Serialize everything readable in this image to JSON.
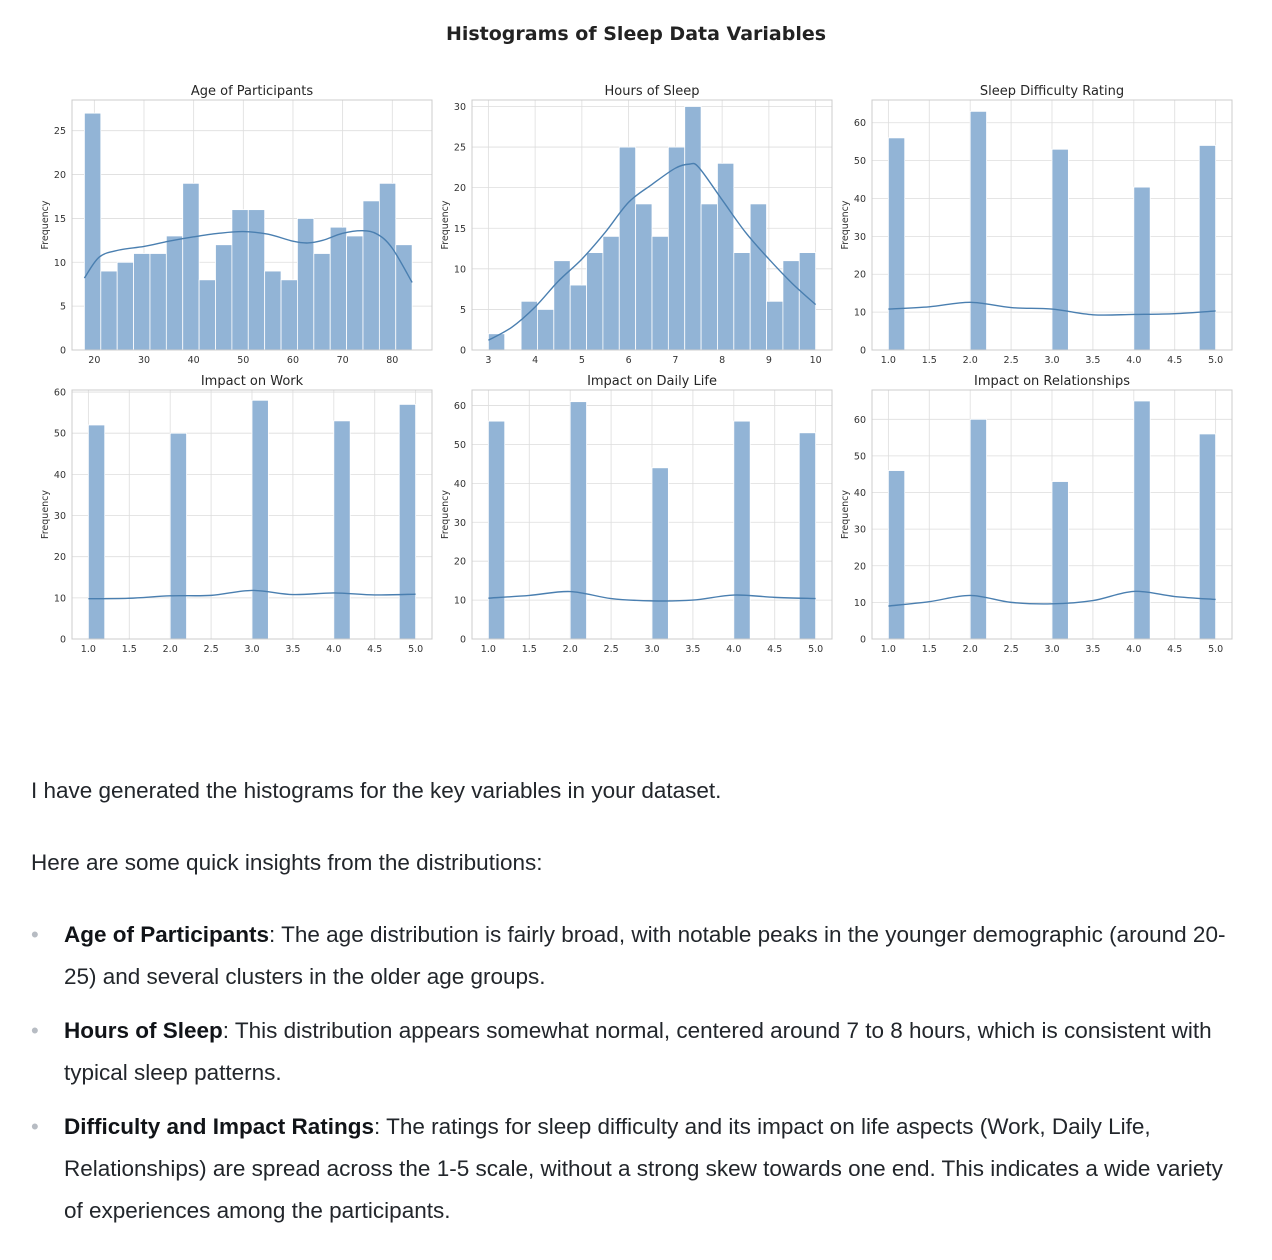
{
  "chart_title": "Histograms of Sleep Data Variables",
  "chart_data": [
    {
      "type": "bar",
      "title": "Age of Participants",
      "ylabel": "Frequency",
      "xlabel": "",
      "x_range": [
        15.5,
        88
      ],
      "ylim": [
        0,
        28.5
      ],
      "xticks": [
        20,
        30,
        40,
        50,
        60,
        70,
        80
      ],
      "xtick_labels": [
        "20",
        "30",
        "40",
        "50",
        "60",
        "70",
        "80"
      ],
      "yticks": [
        0,
        5,
        10,
        15,
        20,
        25
      ],
      "bin_edges": [
        18,
        21.3,
        24.6,
        27.9,
        31.2,
        34.5,
        37.8,
        41.1,
        44.4,
        47.7,
        51,
        54.3,
        57.6,
        60.9,
        64.2,
        67.5,
        70.8,
        74.1,
        77.4,
        80.7,
        84
      ],
      "counts": [
        27,
        9,
        10,
        11,
        11,
        13,
        19,
        8,
        12,
        16,
        16,
        9,
        8,
        15,
        11,
        14,
        13,
        17,
        19,
        12
      ],
      "kde": {
        "x": [
          18,
          21,
          25,
          30,
          35,
          40,
          45,
          50,
          55,
          60,
          63,
          66,
          70,
          74,
          77,
          80,
          84
        ],
        "y": [
          8.2,
          10.6,
          11.4,
          11.8,
          12.4,
          12.9,
          13.3,
          13.5,
          13.2,
          12.4,
          12.2,
          12.5,
          13.3,
          13.6,
          13.2,
          11.6,
          7.7
        ]
      },
      "grid": true
    },
    {
      "type": "bar",
      "title": "Hours of Sleep",
      "ylabel": "Frequency",
      "xlabel": "",
      "x_range": [
        2.65,
        10.35
      ],
      "ylim": [
        0,
        30.8
      ],
      "xticks": [
        3,
        4,
        5,
        6,
        7,
        8,
        9,
        10
      ],
      "xtick_labels": [
        "3",
        "4",
        "5",
        "6",
        "7",
        "8",
        "9",
        "10"
      ],
      "yticks": [
        0,
        5,
        10,
        15,
        20,
        25,
        30
      ],
      "bin_edges": [
        3,
        3.35,
        3.7,
        4.05,
        4.4,
        4.75,
        5.1,
        5.45,
        5.8,
        6.15,
        6.5,
        6.85,
        7.2,
        7.55,
        7.9,
        8.25,
        8.6,
        8.95,
        9.3,
        9.65,
        10
      ],
      "counts": [
        2,
        0,
        6,
        5,
        11,
        8,
        12,
        14,
        25,
        18,
        14,
        25,
        30,
        18,
        23,
        12,
        18,
        6,
        11,
        12
      ],
      "kde": {
        "x": [
          3,
          3.5,
          4,
          4.5,
          5,
          5.5,
          6,
          6.5,
          7,
          7.3,
          7.5,
          8,
          8.5,
          9,
          9.5,
          10
        ],
        "y": [
          1.2,
          2.8,
          5.3,
          8.5,
          11.2,
          14.5,
          18.2,
          20.4,
          22.4,
          22.9,
          22.5,
          18.5,
          14.5,
          11.2,
          8.2,
          5.6
        ]
      },
      "grid": true
    },
    {
      "type": "bar",
      "title": "Sleep Difficulty Rating",
      "ylabel": "Frequency",
      "xlabel": "",
      "x_range": [
        0.8,
        5.2
      ],
      "ylim": [
        0,
        66
      ],
      "xticks": [
        1.0,
        1.5,
        2.0,
        2.5,
        3.0,
        3.5,
        4.0,
        4.5,
        5.0
      ],
      "xtick_labels": [
        "1.0",
        "1.5",
        "2.0",
        "2.5",
        "3.0",
        "3.5",
        "4.0",
        "4.5",
        "5.0"
      ],
      "yticks": [
        0,
        10,
        20,
        30,
        40,
        50,
        60
      ],
      "bin_edges": [
        1,
        1.2,
        1.4,
        1.6,
        1.8,
        2,
        2.2,
        2.4,
        2.6,
        2.8,
        3,
        3.2,
        3.4,
        3.6,
        3.8,
        4,
        4.2,
        4.4,
        4.6,
        4.8,
        5
      ],
      "counts": [
        56,
        0,
        0,
        0,
        0,
        63,
        0,
        0,
        0,
        0,
        53,
        0,
        0,
        0,
        0,
        43,
        0,
        0,
        0,
        54
      ],
      "kde": {
        "x": [
          1,
          1.5,
          2,
          2.5,
          3,
          3.5,
          4,
          4.5,
          5
        ],
        "y": [
          10.8,
          11.4,
          12.6,
          11.2,
          10.8,
          9.3,
          9.4,
          9.6,
          10.3
        ]
      },
      "grid": true
    },
    {
      "type": "bar",
      "title": "Impact on Work",
      "ylabel": "Frequency",
      "xlabel": "",
      "x_range": [
        0.8,
        5.2
      ],
      "ylim": [
        0,
        60.5
      ],
      "xticks": [
        1.0,
        1.5,
        2.0,
        2.5,
        3.0,
        3.5,
        4.0,
        4.5,
        5.0
      ],
      "xtick_labels": [
        "1.0",
        "1.5",
        "2.0",
        "2.5",
        "3.0",
        "3.5",
        "4.0",
        "4.5",
        "5.0"
      ],
      "yticks": [
        0,
        10,
        20,
        30,
        40,
        50,
        60
      ],
      "bin_edges": [
        1,
        1.2,
        1.4,
        1.6,
        1.8,
        2,
        2.2,
        2.4,
        2.6,
        2.8,
        3,
        3.2,
        3.4,
        3.6,
        3.8,
        4,
        4.2,
        4.4,
        4.6,
        4.8,
        5
      ],
      "counts": [
        52,
        0,
        0,
        0,
        0,
        50,
        0,
        0,
        0,
        0,
        58,
        0,
        0,
        0,
        0,
        53,
        0,
        0,
        0,
        57
      ],
      "kde": {
        "x": [
          1,
          1.5,
          2,
          2.5,
          3,
          3.5,
          4,
          4.5,
          5
        ],
        "y": [
          9.8,
          9.9,
          10.5,
          10.6,
          11.8,
          10.8,
          11.2,
          10.7,
          10.9
        ]
      },
      "grid": true
    },
    {
      "type": "bar",
      "title": "Impact on Daily Life",
      "ylabel": "Frequency",
      "xlabel": "",
      "x_range": [
        0.8,
        5.2
      ],
      "ylim": [
        0,
        64
      ],
      "xticks": [
        1.0,
        1.5,
        2.0,
        2.5,
        3.0,
        3.5,
        4.0,
        4.5,
        5.0
      ],
      "xtick_labels": [
        "1.0",
        "1.5",
        "2.0",
        "2.5",
        "3.0",
        "3.5",
        "4.0",
        "4.5",
        "5.0"
      ],
      "yticks": [
        0,
        10,
        20,
        30,
        40,
        50,
        60
      ],
      "bin_edges": [
        1,
        1.2,
        1.4,
        1.6,
        1.8,
        2,
        2.2,
        2.4,
        2.6,
        2.8,
        3,
        3.2,
        3.4,
        3.6,
        3.8,
        4,
        4.2,
        4.4,
        4.6,
        4.8,
        5
      ],
      "counts": [
        56,
        0,
        0,
        0,
        0,
        61,
        0,
        0,
        0,
        0,
        44,
        0,
        0,
        0,
        0,
        56,
        0,
        0,
        0,
        53
      ],
      "kde": {
        "x": [
          1,
          1.5,
          2,
          2.5,
          3,
          3.5,
          4,
          4.5,
          5
        ],
        "y": [
          10.5,
          11.2,
          12.2,
          10.4,
          9.8,
          10.0,
          11.3,
          10.7,
          10.4
        ]
      },
      "grid": true
    },
    {
      "type": "bar",
      "title": "Impact on Relationships",
      "ylabel": "Frequency",
      "xlabel": "",
      "x_range": [
        0.8,
        5.2
      ],
      "ylim": [
        0,
        68
      ],
      "xticks": [
        1.0,
        1.5,
        2.0,
        2.5,
        3.0,
        3.5,
        4.0,
        4.5,
        5.0
      ],
      "xtick_labels": [
        "1.0",
        "1.5",
        "2.0",
        "2.5",
        "3.0",
        "3.5",
        "4.0",
        "4.5",
        "5.0"
      ],
      "yticks": [
        0,
        10,
        20,
        30,
        40,
        50,
        60
      ],
      "bin_edges": [
        1,
        1.2,
        1.4,
        1.6,
        1.8,
        2,
        2.2,
        2.4,
        2.6,
        2.8,
        3,
        3.2,
        3.4,
        3.6,
        3.8,
        4,
        4.2,
        4.4,
        4.6,
        4.8,
        5
      ],
      "counts": [
        46,
        0,
        0,
        0,
        0,
        60,
        0,
        0,
        0,
        0,
        43,
        0,
        0,
        0,
        0,
        65,
        0,
        0,
        0,
        56
      ],
      "kde": {
        "x": [
          1,
          1.5,
          2,
          2.5,
          3,
          3.5,
          4,
          4.5,
          5
        ],
        "y": [
          9.0,
          10.2,
          11.9,
          10.0,
          9.6,
          10.5,
          13.0,
          11.6,
          10.8
        ]
      },
      "grid": true
    }
  ],
  "colors": {
    "bar_fill": "#92b4d6",
    "bar_edge": "#ffffff",
    "kde_line": "#4a7fb0",
    "grid": "#dddddd",
    "spine": "#cccccc"
  },
  "message": {
    "intro": "I have generated the histograms for the key variables in your dataset.",
    "insights_lead": "Here are some quick insights from the distributions:",
    "bullets": [
      {
        "term": "Age of Participants",
        "text": ": The age distribution is fairly broad, with notable peaks in the younger demographic (around 20-25) and several clusters in the older age groups."
      },
      {
        "term": "Hours of Sleep",
        "text": ": This distribution appears somewhat normal, centered around 7 to 8 hours, which is consistent with typical sleep patterns."
      },
      {
        "term": "Difficulty and Impact Ratings",
        "text": ": The ratings for sleep difficulty and its impact on life aspects (Work, Daily Life, Relationships) are spread across the 1-5 scale, without a strong skew towards one end. This indicates a wide variety of experiences among the participants."
      }
    ]
  }
}
